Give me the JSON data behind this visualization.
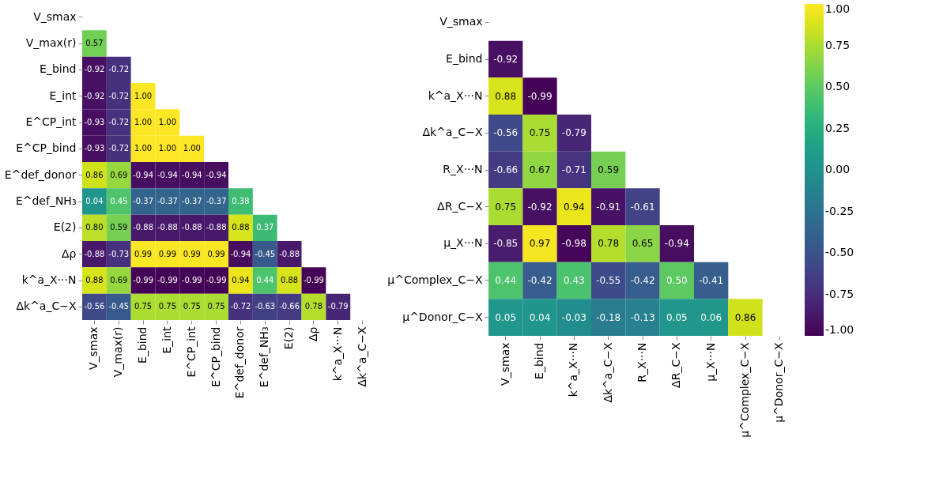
{
  "chart_data": [
    {
      "type": "heatmap",
      "data_labels": true,
      "categories": [
        "V_smax",
        "V_max(r)",
        "E_bind",
        "E_int",
        "E^CP_int",
        "E^CP_bind",
        "E^def_donor",
        "E^def_NH₃",
        "E(2)",
        "Δρ",
        "k^a_X···N",
        "Δk^a_C−X"
      ],
      "y_categories": [
        "V_smax",
        "V_max(r)",
        "E_bind",
        "E_int",
        "E^CP_int",
        "E^CP_bind",
        "E^def_donor",
        "E^def_NH₃",
        "E(2)",
        "Δρ",
        "k^a_X···N",
        "Δk^a_C−X"
      ],
      "cells": [
        [
          null,
          null,
          null,
          null,
          null,
          null,
          null,
          null,
          null,
          null,
          null,
          null
        ],
        [
          0.57,
          null,
          null,
          null,
          null,
          null,
          null,
          null,
          null,
          null,
          null,
          null
        ],
        [
          -0.92,
          -0.72,
          null,
          null,
          null,
          null,
          null,
          null,
          null,
          null,
          null,
          null
        ],
        [
          -0.92,
          -0.72,
          1.0,
          null,
          null,
          null,
          null,
          null,
          null,
          null,
          null,
          null
        ],
        [
          -0.93,
          -0.72,
          1.0,
          1.0,
          null,
          null,
          null,
          null,
          null,
          null,
          null,
          null
        ],
        [
          -0.93,
          -0.72,
          1.0,
          1.0,
          1.0,
          null,
          null,
          null,
          null,
          null,
          null,
          null
        ],
        [
          0.86,
          0.69,
          -0.94,
          -0.94,
          -0.94,
          -0.94,
          null,
          null,
          null,
          null,
          null,
          null
        ],
        [
          0.04,
          0.45,
          -0.37,
          -0.37,
          -0.37,
          -0.37,
          0.38,
          null,
          null,
          null,
          null,
          null
        ],
        [
          0.8,
          0.59,
          -0.88,
          -0.88,
          -0.88,
          -0.88,
          0.88,
          0.37,
          null,
          null,
          null,
          null
        ],
        [
          -0.88,
          -0.73,
          0.99,
          0.99,
          0.99,
          0.99,
          -0.94,
          -0.45,
          -0.88,
          null,
          null,
          null
        ],
        [
          0.88,
          0.69,
          -0.99,
          -0.99,
          -0.99,
          -0.99,
          0.94,
          0.44,
          0.88,
          -0.99,
          null,
          null
        ],
        [
          -0.56,
          -0.45,
          0.75,
          0.75,
          0.75,
          0.75,
          -0.72,
          -0.63,
          -0.66,
          0.78,
          -0.79,
          null
        ]
      ],
      "cell_labels": [
        [
          null,
          null,
          null,
          null,
          null,
          null,
          null,
          null,
          null,
          null,
          null,
          null
        ],
        [
          "0.57",
          null,
          null,
          null,
          null,
          null,
          null,
          null,
          null,
          null,
          null,
          null
        ],
        [
          "-0.92",
          "-0.72",
          null,
          null,
          null,
          null,
          null,
          null,
          null,
          null,
          null,
          null
        ],
        [
          "-0.92",
          "-0.72",
          "1.00",
          null,
          null,
          null,
          null,
          null,
          null,
          null,
          null,
          null
        ],
        [
          "-0.93",
          "-0.72",
          "1.00",
          "1.00",
          null,
          null,
          null,
          null,
          null,
          null,
          null,
          null
        ],
        [
          "-0.93",
          "-0.72",
          "1.00",
          "1.00",
          "1.00",
          null,
          null,
          null,
          null,
          null,
          null,
          null
        ],
        [
          "0.86",
          "0.69",
          "-0.94",
          "-0.94",
          "-0.94",
          "-0.94",
          null,
          null,
          null,
          null,
          null,
          null
        ],
        [
          "0.04",
          "0.45",
          "-0.37",
          "-0.37",
          "-0.37",
          "-0.37",
          "0.38",
          null,
          null,
          null,
          null,
          null
        ],
        [
          "0.80",
          "0.59",
          "-0.88",
          "-0.88",
          "-0.88",
          "-0.88",
          "0.88",
          "0.37",
          null,
          null,
          null,
          null
        ],
        [
          "-0.88",
          "-0.73",
          "0.99",
          "0.99",
          "0.99",
          "0.99",
          "-0.94",
          "-0.45",
          "-0.88",
          null,
          null,
          null
        ],
        [
          "0.88",
          "0.69",
          "-0.99",
          "-0.99",
          "-0.99",
          "-0.99",
          "0.94",
          "0.44",
          "0.88",
          "-0.99",
          null,
          null
        ],
        [
          "-0.56",
          "-0.45",
          "0.75",
          "0.75",
          "0.75",
          "0.75",
          "-0.72",
          "-0.63",
          "-0.66",
          "0.78",
          "-0.79",
          null
        ]
      ]
    },
    {
      "type": "heatmap",
      "data_labels": true,
      "categories": [
        "V_smax",
        "E_bind",
        "k^a_X···N",
        "Δk^a_C−X",
        "R_X···N",
        "ΔR_C−X",
        "μ_X···N",
        "μ^Complex_C−X",
        "μ^Donor_C−X"
      ],
      "y_categories": [
        "V_smax",
        "E_bind",
        "k^a_X···N",
        "Δk^a_C−X",
        "R_X···N",
        "ΔR_C−X",
        "μ_X···N",
        "μ^Complex_C−X",
        "μ^Donor_C−X"
      ],
      "cells": [
        [
          null,
          null,
          null,
          null,
          null,
          null,
          null,
          null,
          null
        ],
        [
          -0.92,
          null,
          null,
          null,
          null,
          null,
          null,
          null,
          null
        ],
        [
          0.88,
          -0.99,
          null,
          null,
          null,
          null,
          null,
          null,
          null
        ],
        [
          -0.56,
          0.75,
          -0.79,
          null,
          null,
          null,
          null,
          null,
          null
        ],
        [
          -0.66,
          0.67,
          -0.71,
          0.59,
          null,
          null,
          null,
          null,
          null
        ],
        [
          0.75,
          -0.92,
          0.94,
          -0.91,
          -0.61,
          null,
          null,
          null,
          null
        ],
        [
          -0.85,
          0.97,
          -0.98,
          0.78,
          0.65,
          -0.94,
          null,
          null,
          null
        ],
        [
          0.44,
          -0.42,
          0.43,
          -0.55,
          -0.42,
          0.5,
          -0.41,
          null,
          null
        ],
        [
          0.05,
          0.04,
          -0.03,
          -0.18,
          -0.13,
          0.05,
          0.06,
          0.86,
          null
        ]
      ],
      "cell_labels": [
        [
          null,
          null,
          null,
          null,
          null,
          null,
          null,
          null,
          null
        ],
        [
          "-0.92",
          null,
          null,
          null,
          null,
          null,
          null,
          null,
          null
        ],
        [
          "0.88",
          "-0.99",
          null,
          null,
          null,
          null,
          null,
          null,
          null
        ],
        [
          "-0.56",
          "0.75",
          "-0.79",
          null,
          null,
          null,
          null,
          null,
          null
        ],
        [
          "-0.66",
          "0.67",
          "-0.71",
          "0.59",
          null,
          null,
          null,
          null,
          null
        ],
        [
          "0.75",
          "-0.92",
          "0.94",
          "-0.91",
          "-0.61",
          null,
          null,
          null,
          null
        ],
        [
          "-0.85",
          "0.97",
          "-0.98",
          "0.78",
          "0.65",
          "-0.94",
          null,
          null,
          null
        ],
        [
          "0.44",
          "-0.42",
          "0.43",
          "-0.55",
          "-0.42",
          "0.50",
          "-0.41",
          null,
          null
        ],
        [
          "0.05",
          "0.04",
          "-0.03",
          "-0.18",
          "-0.13",
          "0.05",
          "0.06",
          "0.86",
          null
        ]
      ],
      "clim": [
        -1,
        1
      ],
      "cticks": [
        {
          "value": -1,
          "label": "-1.00"
        },
        {
          "value": -0.75,
          "label": "-0.75"
        },
        {
          "value": -0.5,
          "label": "-0.50"
        },
        {
          "value": -0.25,
          "label": "-0.25"
        },
        {
          "value": 0,
          "label": "0.00"
        },
        {
          "value": 0.25,
          "label": "0.25"
        },
        {
          "value": 0.5,
          "label": "0.50"
        },
        {
          "value": 0.75,
          "label": "0.75"
        },
        {
          "value": 1,
          "label": "1.00"
        }
      ]
    }
  ]
}
